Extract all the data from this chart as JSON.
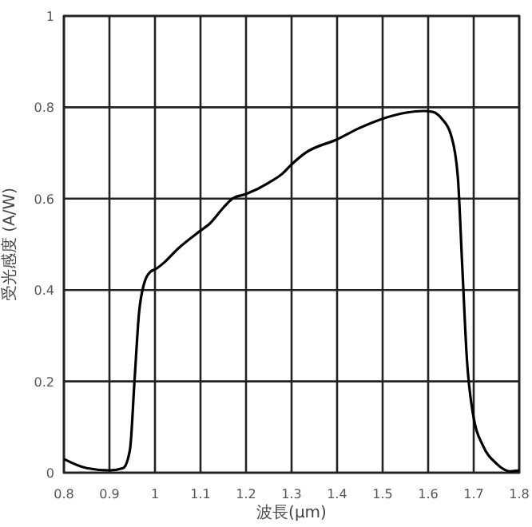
{
  "chart_data": {
    "type": "line",
    "xlabel": "波長(μm)",
    "ylabel": "受光感度 (A/W)",
    "xlim": [
      0.8,
      1.8
    ],
    "xticks": [
      0.8,
      0.9,
      1,
      1.1,
      1.2,
      1.3,
      1.4,
      1.5,
      1.6,
      1.7,
      1.8
    ],
    "ylim": [
      0,
      1
    ],
    "yticks": [
      0,
      0.2,
      0.4,
      0.6,
      0.8,
      1
    ],
    "grid": true,
    "marker": "none",
    "line_style": "solid",
    "series": [
      {
        "color": "#000000",
        "x": [
          0.8,
          0.85,
          0.9,
          0.93,
          0.945,
          0.955,
          0.965,
          0.975,
          0.99,
          1.0,
          1.02,
          1.05,
          1.1,
          1.12,
          1.15,
          1.17,
          1.2,
          1.25,
          1.28,
          1.3,
          1.33,
          1.4,
          1.45,
          1.5,
          1.55,
          1.59,
          1.61,
          1.63,
          1.65,
          1.665,
          1.675,
          1.685,
          1.7,
          1.72,
          1.75,
          1.78,
          1.8
        ],
        "values": [
          0.03,
          0.01,
          0.005,
          0.01,
          0.05,
          0.2,
          0.35,
          0.41,
          0.44,
          0.445,
          0.46,
          0.49,
          0.53,
          0.545,
          0.58,
          0.6,
          0.61,
          0.635,
          0.655,
          0.675,
          0.7,
          0.73,
          0.755,
          0.775,
          0.788,
          0.792,
          0.79,
          0.775,
          0.74,
          0.65,
          0.45,
          0.25,
          0.12,
          0.06,
          0.02,
          0.003,
          0.005
        ]
      }
    ]
  }
}
